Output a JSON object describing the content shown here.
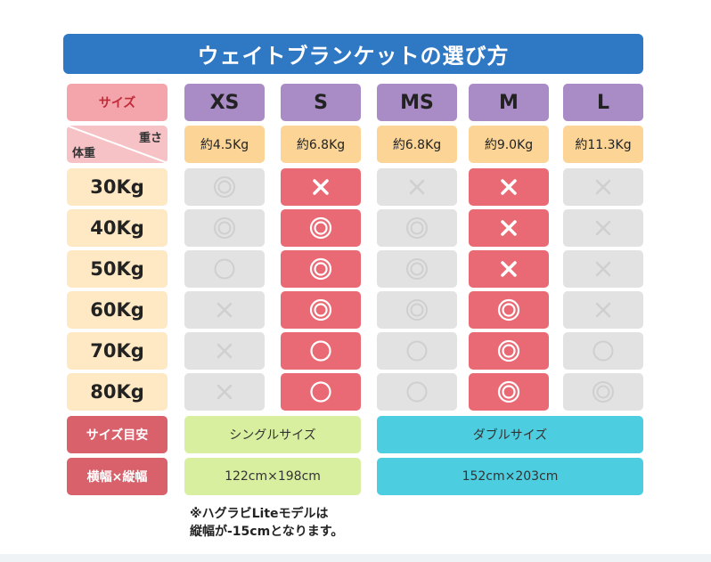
{
  "title": "ウェイトブランケットの選び方",
  "header": {
    "size_label": "サイズ",
    "corner_top": "重さ",
    "corner_bottom": "体重",
    "sizes": [
      "XS",
      "S",
      "MS",
      "M",
      "L"
    ],
    "weights": [
      "約4.5Kg",
      "約6.8Kg",
      "約6.8Kg",
      "約9.0Kg",
      "約11.3Kg"
    ]
  },
  "rows": [
    {
      "label": "30Kg",
      "cells": [
        "double-circle",
        "cross",
        "cross",
        "cross",
        "cross"
      ]
    },
    {
      "label": "40Kg",
      "cells": [
        "double-circle",
        "double-circle",
        "double-circle",
        "cross",
        "cross"
      ]
    },
    {
      "label": "50Kg",
      "cells": [
        "circle",
        "double-circle",
        "double-circle",
        "cross",
        "cross"
      ]
    },
    {
      "label": "60Kg",
      "cells": [
        "cross",
        "double-circle",
        "double-circle",
        "double-circle",
        "cross"
      ]
    },
    {
      "label": "70Kg",
      "cells": [
        "cross",
        "circle",
        "circle",
        "double-circle",
        "circle"
      ]
    },
    {
      "label": "80Kg",
      "cells": [
        "cross",
        "circle",
        "circle",
        "double-circle",
        "double-circle"
      ]
    }
  ],
  "highlight_columns": [
    "S",
    "M"
  ],
  "footer": {
    "size_guide_label": "サイズ目安",
    "dimensions_label": "横幅×縦幅",
    "single_label": "シングルサイズ",
    "double_label": "ダブルサイズ",
    "single_dims": "122cm×198cm",
    "double_dims": "152cm×203cm"
  },
  "note": {
    "line1": "※ハグラビLiteモデルは",
    "line2": "縦幅が-15cmとなります。"
  },
  "colors": {
    "title_bg": "#2f78c4",
    "size_header": "#a98bc6",
    "weight_header": "#fcd596",
    "row_label": "#ffe9c4",
    "highlight": "#e96a74",
    "neutral": "#e2e2e2",
    "single": "#d9efa0",
    "double": "#4ccde0",
    "footer_label": "#d9616b"
  }
}
